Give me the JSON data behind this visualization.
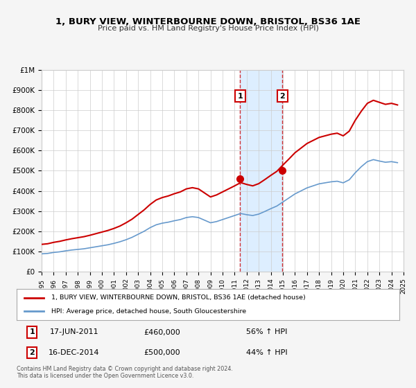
{
  "title": "1, BURY VIEW, WINTERBOURNE DOWN, BRISTOL, BS36 1AE",
  "subtitle": "Price paid vs. HM Land Registry's House Price Index (HPI)",
  "legend_line1": "1, BURY VIEW, WINTERBOURNE DOWN, BRISTOL, BS36 1AE (detached house)",
  "legend_line2": "HPI: Average price, detached house, South Gloucestershire",
  "footer1": "Contains HM Land Registry data © Crown copyright and database right 2024.",
  "footer2": "This data is licensed under the Open Government Licence v3.0.",
  "sale1_date": "17-JUN-2011",
  "sale1_price": 460000,
  "sale1_pct": "56% ↑ HPI",
  "sale1_x": 2011.46,
  "sale2_date": "16-DEC-2014",
  "sale2_price": 500000,
  "sale2_pct": "44% ↑ HPI",
  "sale2_x": 2014.96,
  "red_color": "#cc0000",
  "blue_color": "#6699cc",
  "shade_color": "#ddeeff",
  "grid_color": "#cccccc",
  "background_color": "#f5f5f5",
  "plot_bg_color": "#ffffff",
  "ylim": [
    0,
    1000000
  ],
  "xlim_start": 1995,
  "xlim_end": 2025,
  "hpi_data": {
    "years": [
      1995.0,
      1995.5,
      1996.0,
      1996.5,
      1997.0,
      1997.5,
      1998.0,
      1998.5,
      1999.0,
      1999.5,
      2000.0,
      2000.5,
      2001.0,
      2001.5,
      2002.0,
      2002.5,
      2003.0,
      2003.5,
      2004.0,
      2004.5,
      2005.0,
      2005.5,
      2006.0,
      2006.5,
      2007.0,
      2007.5,
      2008.0,
      2008.5,
      2009.0,
      2009.5,
      2010.0,
      2010.5,
      2011.0,
      2011.5,
      2012.0,
      2012.5,
      2013.0,
      2013.5,
      2014.0,
      2014.5,
      2015.0,
      2015.5,
      2016.0,
      2016.5,
      2017.0,
      2017.5,
      2018.0,
      2018.5,
      2019.0,
      2019.5,
      2020.0,
      2020.5,
      2021.0,
      2021.5,
      2022.0,
      2022.5,
      2023.0,
      2023.5,
      2024.0,
      2024.5
    ],
    "values": [
      88000,
      90000,
      95000,
      98000,
      103000,
      107000,
      110000,
      113000,
      118000,
      123000,
      128000,
      133000,
      140000,
      148000,
      158000,
      170000,
      185000,
      200000,
      218000,
      232000,
      240000,
      245000,
      252000,
      258000,
      268000,
      272000,
      268000,
      255000,
      242000,
      248000,
      258000,
      268000,
      278000,
      288000,
      282000,
      278000,
      285000,
      298000,
      312000,
      325000,
      345000,
      365000,
      385000,
      400000,
      415000,
      425000,
      435000,
      440000,
      445000,
      448000,
      440000,
      455000,
      490000,
      520000,
      545000,
      555000,
      548000,
      542000,
      545000,
      540000
    ]
  },
  "hpi_indexed_data": {
    "years": [
      1995.0,
      1995.5,
      1996.0,
      1996.5,
      1997.0,
      1997.5,
      1998.0,
      1998.5,
      1999.0,
      1999.5,
      2000.0,
      2000.5,
      2001.0,
      2001.5,
      2002.0,
      2002.5,
      2003.0,
      2003.5,
      2004.0,
      2004.5,
      2005.0,
      2005.5,
      2006.0,
      2006.5,
      2007.0,
      2007.5,
      2008.0,
      2008.5,
      2009.0,
      2009.5,
      2010.0,
      2010.5,
      2011.0,
      2011.5,
      2012.0,
      2012.5,
      2013.0,
      2013.5,
      2014.0,
      2014.5,
      2015.0,
      2015.5,
      2016.0,
      2016.5,
      2017.0,
      2017.5,
      2018.0,
      2018.5,
      2019.0,
      2019.5,
      2020.0,
      2020.5,
      2021.0,
      2021.5,
      2022.0,
      2022.5,
      2023.0,
      2023.5,
      2024.0,
      2024.5
    ],
    "values": [
      135000,
      138000,
      145000,
      150000,
      157000,
      163000,
      168000,
      173000,
      180000,
      188000,
      196000,
      204000,
      214000,
      226000,
      242000,
      260000,
      283000,
      306000,
      333000,
      355000,
      367000,
      375000,
      386000,
      395000,
      410000,
      416000,
      410000,
      390000,
      370000,
      380000,
      395000,
      410000,
      425000,
      441000,
      432000,
      425000,
      436000,
      456000,
      477000,
      497000,
      528000,
      558000,
      589000,
      612000,
      635000,
      650000,
      665000,
      673000,
      681000,
      686000,
      673000,
      696000,
      750000,
      795000,
      834000,
      849000,
      839000,
      829000,
      834000,
      826000
    ]
  }
}
